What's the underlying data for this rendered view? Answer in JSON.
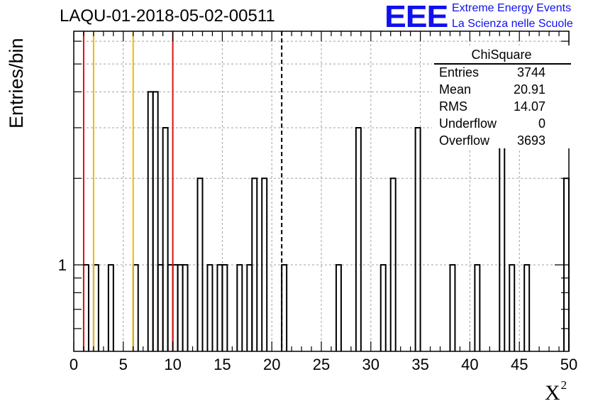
{
  "title": "LAQU-01-2018-05-02-00511",
  "logo": {
    "mark": "EEE",
    "line1": "Extreme Energy Events",
    "line2": "La Scienza nelle Scuole"
  },
  "stats_box": {
    "title": "ChiSquare",
    "rows": [
      {
        "label": "Entries",
        "value": "3744"
      },
      {
        "label": "Mean",
        "value": "20.91"
      },
      {
        "label": "RMS",
        "value": "14.07"
      },
      {
        "label": "Underflow",
        "value": "0"
      },
      {
        "label": "Overflow",
        "value": "3693"
      }
    ]
  },
  "colors": {
    "red_line": "#dd1111",
    "orange_line": "#f2b800",
    "histogram": "#000000",
    "grid": "#a0a0a0",
    "logo": "#1010ee"
  },
  "chart_data": {
    "type": "histogram",
    "title": "LAQU-01-2018-05-02-00511",
    "xlabel": "X",
    "xlabel_superscript": "2",
    "ylabel": "Entries/bin",
    "xlim": [
      0,
      50
    ],
    "ylim": [
      0.5,
      6.5
    ],
    "y_scale": "log",
    "grid": true,
    "x_ticks": [
      0,
      5,
      10,
      15,
      20,
      25,
      30,
      35,
      40,
      45,
      50
    ],
    "y_tick_labels": [
      {
        "value": 1,
        "label": "1"
      }
    ],
    "bin_width": 0.5,
    "bins": [
      {
        "x": 1.0,
        "count": 1
      },
      {
        "x": 2.0,
        "count": 1
      },
      {
        "x": 3.5,
        "count": 1
      },
      {
        "x": 6.0,
        "count": 1
      },
      {
        "x": 7.5,
        "count": 4
      },
      {
        "x": 8.0,
        "count": 4
      },
      {
        "x": 8.5,
        "count": 1
      },
      {
        "x": 9.0,
        "count": 3
      },
      {
        "x": 9.5,
        "count": 1
      },
      {
        "x": 10.0,
        "count": 1
      },
      {
        "x": 10.5,
        "count": 1
      },
      {
        "x": 11.0,
        "count": 1
      },
      {
        "x": 12.5,
        "count": 2
      },
      {
        "x": 13.5,
        "count": 1
      },
      {
        "x": 14.5,
        "count": 1
      },
      {
        "x": 15.0,
        "count": 1
      },
      {
        "x": 16.5,
        "count": 1
      },
      {
        "x": 17.5,
        "count": 1
      },
      {
        "x": 18.0,
        "count": 2
      },
      {
        "x": 19.0,
        "count": 2
      },
      {
        "x": 21.0,
        "count": 1
      },
      {
        "x": 26.5,
        "count": 1
      },
      {
        "x": 28.5,
        "count": 3
      },
      {
        "x": 31.0,
        "count": 1
      },
      {
        "x": 32.0,
        "count": 2
      },
      {
        "x": 34.5,
        "count": 3
      },
      {
        "x": 38.0,
        "count": 1
      },
      {
        "x": 40.5,
        "count": 1
      },
      {
        "x": 43.0,
        "count": 3
      },
      {
        "x": 44.0,
        "count": 1
      },
      {
        "x": 45.5,
        "count": 1
      },
      {
        "x": 49.5,
        "count": 2
      }
    ],
    "vertical_lines": [
      {
        "x": 1,
        "color": "red",
        "style": "solid"
      },
      {
        "x": 2,
        "color": "orange",
        "style": "solid"
      },
      {
        "x": 6,
        "color": "orange",
        "style": "solid"
      },
      {
        "x": 10,
        "color": "red",
        "style": "solid"
      },
      {
        "x": 21,
        "color": "black",
        "style": "dashed"
      }
    ]
  }
}
